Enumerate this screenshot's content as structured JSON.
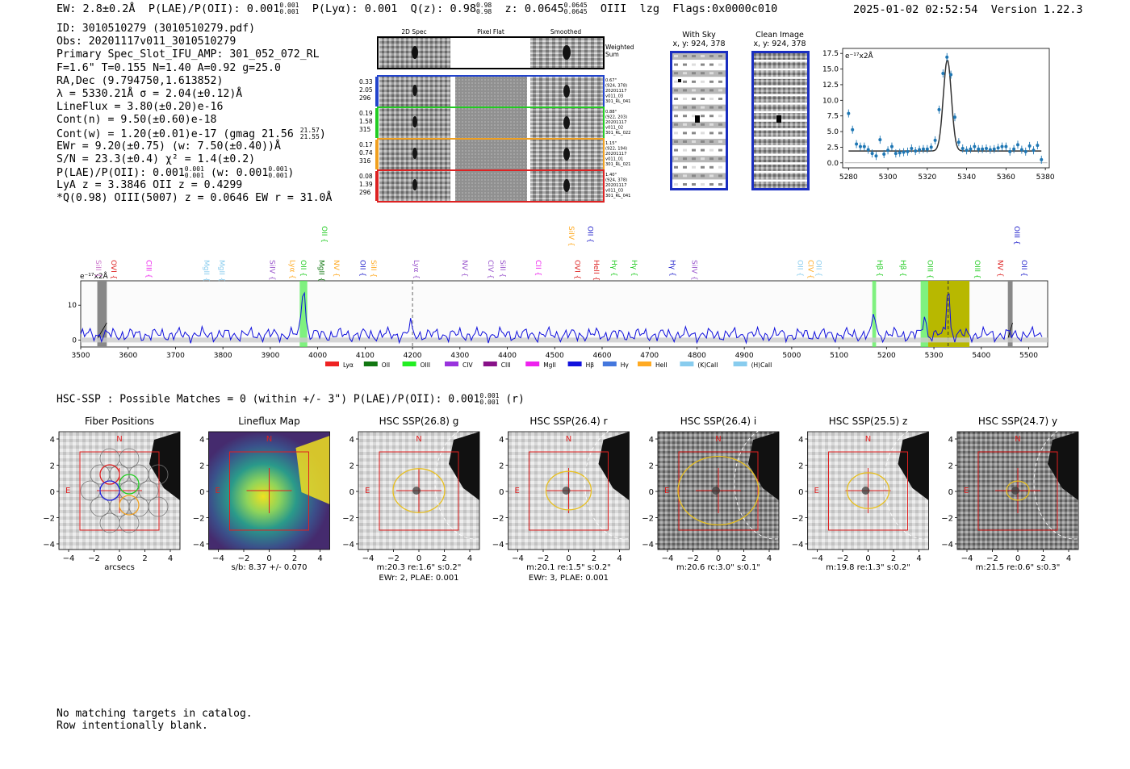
{
  "header": {
    "ew": "EW: 2.8±0.2Å",
    "plae": "P(LAE)/P(OII): 0.001",
    "plae_hi": "0.001",
    "plae_lo": "0.001",
    "plya": "P(Lyα): 0.001",
    "qz": "Q(z): 0.98",
    "qz_hi": "0.98",
    "qz_lo": "0.98",
    "z": "z: 0.0645",
    "z_hi": "0.0645",
    "z_lo": "0.0645",
    "line": "OIII",
    "mode": "lzg",
    "flags": "Flags:0x0000c010",
    "timestamp": "2025-01-02 02:52:54",
    "version": "Version 1.22.3"
  },
  "info": {
    "id": "ID: 3010510279 (3010510279.pdf)",
    "obs": "Obs: 20201117v011_3010510279",
    "primary": "Primary Spec_Slot_IFU_AMP: 301_052_072_RL",
    "fparams": "F=1.6\"  T=0.155  N=1.40  A=0.92  g=25.0",
    "radec": "RA,Dec (9.794750,1.613852)",
    "lambda": "λ = 5330.21Å  σ = 2.04(±0.12)Å",
    "lineflux": "LineFlux = 3.80(±0.20)e-16",
    "contn": "Cont(n) = 9.50(±0.60)e-18",
    "contw": "Cont(w) = 1.20(±0.01)e-17 (gmag 21.56",
    "contw_hi": "21.57",
    "contw_lo": "21.55",
    "ewr": "EWr = 9.20(±0.75) (w: 7.50(±0.40))Å",
    "sn": "S/N = 23.3(±0.4)  χ² = 1.4(±0.2)",
    "plae2": "P(LAE)/P(OII): 0.001",
    "plae2_hi": "0.001",
    "plae2_lo": "0.001",
    "plae2_w": "(w: 0.001",
    "plae2_w_hi": "0.001",
    "plae2_w_lo": "0.001",
    "lya": "LyA z = 3.3846  OII z = 0.4299",
    "q": "*Q(0.98) OIII(5007) z = 0.0646  EW r = 31.0Å"
  },
  "cutouts": {
    "col_titles": [
      "2D Spec",
      "Pixel Flat",
      "Smoothed"
    ],
    "weighted_label": "Weighted Sum",
    "rows": [
      {
        "left": [
          "0.33",
          "2.05",
          "296"
        ],
        "right": [
          "0.67\"",
          "(924, 378)",
          "20201117",
          "v011_03",
          "301_RL_041"
        ],
        "color": "#2244cc"
      },
      {
        "left": [
          "0.19",
          "1.58",
          "315"
        ],
        "right": [
          "0.88\"",
          "(922, 203)",
          "20201117",
          "v011_02",
          "301_RL_022"
        ],
        "color": "#22cc22"
      },
      {
        "left": [
          "0.17",
          "0.74",
          "316"
        ],
        "right": [
          "1.15\"",
          "(922, 194)",
          "20201117",
          "v011_01",
          "301_RL_021"
        ],
        "color": "#f0a020"
      },
      {
        "left": [
          "0.08",
          "1.39",
          "296"
        ],
        "right": [
          "1.40\"",
          "(924, 378)",
          "20201117",
          "v011_03",
          "301_RL_041"
        ],
        "color": "#dd2222"
      }
    ]
  },
  "sky": {
    "with_sky_title": "With Sky",
    "with_sky_xy": "x, y: 924, 378",
    "clean_title": "Clean Image",
    "clean_xy": "x, y: 924, 378"
  },
  "zoom_chart": {
    "unit_label": "e⁻¹⁷x2Å",
    "x_ticks": [
      "5280",
      "5300",
      "5320",
      "5340",
      "5360",
      "5380"
    ],
    "y_ticks": [
      "0.0",
      "2.5",
      "5.0",
      "7.5",
      "10.0",
      "12.5",
      "15.0",
      "17.5"
    ]
  },
  "chart_data": [
    {
      "type": "scatter",
      "title": "",
      "xlabel": "",
      "ylabel": "e-17x2Å",
      "xlim": [
        5277,
        5382
      ],
      "ylim": [
        -0.8,
        18.3
      ],
      "x": [
        5280,
        5282,
        5284,
        5286,
        5288,
        5290,
        5292,
        5294,
        5296,
        5298,
        5300,
        5302,
        5304,
        5306,
        5308,
        5310,
        5312,
        5314,
        5316,
        5318,
        5320,
        5322,
        5324,
        5326,
        5328,
        5330,
        5332,
        5334,
        5336,
        5338,
        5340,
        5342,
        5344,
        5346,
        5348,
        5350,
        5352,
        5354,
        5356,
        5358,
        5360,
        5362,
        5364,
        5366,
        5368,
        5370,
        5372,
        5374,
        5376,
        5378
      ],
      "y": [
        7.9,
        5.3,
        3.0,
        2.6,
        2.6,
        2.1,
        1.5,
        1.1,
        3.7,
        1.4,
        2.0,
        2.6,
        1.5,
        1.6,
        1.7,
        1.8,
        2.3,
        1.9,
        2.1,
        2.2,
        2.2,
        2.5,
        3.6,
        8.5,
        14.3,
        16.9,
        14.1,
        7.3,
        3.3,
        2.3,
        2.0,
        2.2,
        2.6,
        2.2,
        2.2,
        2.3,
        2.1,
        2.2,
        2.4,
        2.6,
        2.6,
        1.8,
        2.2,
        2.9,
        2.1,
        1.8,
        2.7,
        2.0,
        2.8,
        0.5
      ],
      "fit_continuum": 1.9,
      "fit_center": 5330.2,
      "fit_sigma": 2.04,
      "fit_peak": 16.5
    },
    {
      "type": "line",
      "title": "",
      "xlabel": "",
      "ylabel": "e-17x2Å",
      "xlim": [
        3500,
        5540
      ],
      "ylim": [
        -2,
        17
      ],
      "x_ticks": [
        "3500",
        "3600",
        "3700",
        "3800",
        "3900",
        "4000",
        "4100",
        "4200",
        "4300",
        "4400",
        "4500",
        "4600",
        "4700",
        "4800",
        "4900",
        "5000",
        "5100",
        "5200",
        "5300",
        "5400",
        "5500"
      ],
      "y_ticks": [
        "0",
        "10"
      ],
      "features": [
        {
          "x": 3970,
          "peak": 14.5,
          "width": 4
        },
        {
          "x": 4195,
          "peak": 3.0,
          "width": 3
        },
        {
          "x": 5174,
          "peak": 6.8,
          "width": 3
        },
        {
          "x": 5280,
          "peak": 6.2,
          "width": 3
        },
        {
          "x": 5330,
          "peak": 15.5,
          "width": 3
        }
      ],
      "baseline": 1.5,
      "dashed_line_x": 4200,
      "highlight_green": [
        [
          3962,
          3978
        ],
        [
          5170,
          5178
        ],
        [
          5272,
          5288
        ]
      ],
      "highlight_olive": [
        5288,
        5375
      ],
      "gray_bars": [
        [
          3535,
          3555
        ],
        [
          5456,
          5466
        ]
      ],
      "lines": [
        {
          "label": "SiII",
          "x": 3527,
          "color": "#cc77cc"
        },
        {
          "label": "OVI",
          "x": 3560,
          "color": "#dd2222"
        },
        {
          "label": "CIII",
          "x": 3634,
          "color": "#ee22ee"
        },
        {
          "label": "MgII",
          "x": 3755,
          "color": "#88ccee"
        },
        {
          "label": "MgII",
          "x": 3788,
          "color": "#88ccee"
        },
        {
          "label": "SiIV",
          "x": 3894,
          "color": "#9955cc"
        },
        {
          "label": "Lyα",
          "x": 3937,
          "color": "#ffaa22"
        },
        {
          "label": "OII",
          "x": 3960,
          "color": "#22cc22"
        },
        {
          "label": "MgII",
          "x": 3998,
          "color": "#117711"
        },
        {
          "label": "NV",
          "x": 4030,
          "color": "#ffaa22"
        },
        {
          "label": "OII",
          "x": 4085,
          "color": "#2222cc"
        },
        {
          "label": "SiII",
          "x": 4108,
          "color": "#ffaa22"
        },
        {
          "label": "Lyα",
          "x": 4198,
          "color": "#9955cc"
        },
        {
          "label": "NV",
          "x": 4300,
          "color": "#9955cc"
        },
        {
          "label": "CIV",
          "x": 4355,
          "color": "#9955cc"
        },
        {
          "label": "SiII",
          "x": 4380,
          "color": "#9955cc"
        },
        {
          "label": "CII",
          "x": 4455,
          "color": "#ee22ee"
        },
        {
          "label": "OVI",
          "x": 4538,
          "color": "#dd2222"
        },
        {
          "label": "HeII",
          "x": 4578,
          "color": "#dd2222"
        },
        {
          "label": "Hγ",
          "x": 4615,
          "color": "#22cc22"
        },
        {
          "label": "Hγ",
          "x": 4658,
          "color": "#22cc22"
        },
        {
          "label": "Hγ",
          "x": 4739,
          "color": "#2222cc"
        },
        {
          "label": "SiIV",
          "x": 4785,
          "color": "#9955cc"
        },
        {
          "label": "OII",
          "x": 5008,
          "color": "#88ccee"
        },
        {
          "label": "CIV",
          "x": 5030,
          "color": "#ffaa22"
        },
        {
          "label": "OII",
          "x": 5047,
          "color": "#88ccee"
        },
        {
          "label": "Hβ",
          "x": 5176,
          "color": "#22cc22"
        },
        {
          "label": "Hβ",
          "x": 5225,
          "color": "#22cc22"
        },
        {
          "label": "OIII",
          "x": 5282,
          "color": "#22cc22"
        },
        {
          "label": "OIII",
          "x": 5382,
          "color": "#22cc22"
        },
        {
          "label": "NV",
          "x": 5430,
          "color": "#dd2222"
        },
        {
          "label": "OII",
          "x": 5480,
          "color": "#2222cc"
        }
      ],
      "top_lines": [
        {
          "label": "OII",
          "x": 4004,
          "color": "#22cc22"
        },
        {
          "label": "SiIV",
          "x": 4525,
          "color": "#ffaa22"
        },
        {
          "label": "OII",
          "x": 4565,
          "color": "#2222cc"
        },
        {
          "label": "OIII",
          "x": 5465,
          "color": "#2222cc"
        }
      ],
      "legend": [
        {
          "label": "Lyα",
          "color": "#ee2222"
        },
        {
          "label": "OII",
          "color": "#117711"
        },
        {
          "label": "OIII",
          "color": "#22ee22"
        },
        {
          "label": "CIV",
          "color": "#9933dd"
        },
        {
          "label": "CIII",
          "color": "#881188"
        },
        {
          "label": "MgII",
          "color": "#ee22ee"
        },
        {
          "label": "Hβ",
          "color": "#1111dd"
        },
        {
          "label": "Hγ",
          "color": "#4477dd"
        },
        {
          "label": "HeII",
          "color": "#ffaa22"
        },
        {
          "label": "(K)CaII",
          "color": "#88ccee"
        },
        {
          "label": "(H)CaII",
          "color": "#88ccee"
        }
      ]
    }
  ],
  "hsc": {
    "title": "HSC-SSP : Possible Matches = 0 (within +/- 3\")  P(LAE)/P(OII): 0.001",
    "title_hi": "0.001",
    "title_lo": "0.001",
    "title_band": "(r)",
    "panels": [
      {
        "title": "Fiber Positions",
        "caption1": "arcsecs",
        "caption2": "",
        "kind": "fiber"
      },
      {
        "title": "Lineflux Map",
        "caption1": "s/b: 8.37 +/- 0.070",
        "caption2": "",
        "kind": "lineflux"
      },
      {
        "title": "HSC SSP(26.8) g",
        "caption1": "m:20.3  re:1.6\"  s:0.2\"",
        "caption2": "EWr: 2, PLAE: 0.001",
        "kind": "image",
        "ellipse_r": 32
      },
      {
        "title": "HSC SSP(26.4) r",
        "caption1": "m:20.1  re:1.5\"  s:0.2\"",
        "caption2": "EWr: 3, PLAE: 0.001",
        "kind": "image",
        "ellipse_r": 28
      },
      {
        "title": "HSC SSP(26.4) i",
        "caption1": "m:20.6 rc:3.0\"  s:0.1\"",
        "caption2": "",
        "kind": "image",
        "ellipse_r": 50
      },
      {
        "title": "HSC SSP(25.5) z",
        "caption1": "m:19.8  re:1.3\"  s:0.2\"",
        "caption2": "",
        "kind": "image",
        "ellipse_r": 26
      },
      {
        "title": "HSC SSP(24.7) y",
        "caption1": "m:21.5  re:0.6\"  s:0.3\"",
        "caption2": "",
        "kind": "image",
        "ellipse_r": 14
      }
    ],
    "x_ticks": [
      "−4",
      "−2",
      "0",
      "2",
      "4"
    ],
    "y_ticks": [
      "4",
      "2",
      "0",
      "−2",
      "−4"
    ],
    "north": "N",
    "east": "E"
  },
  "footer": {
    "line1": "No matching targets in catalog.",
    "line2": "Row intentionally blank."
  }
}
